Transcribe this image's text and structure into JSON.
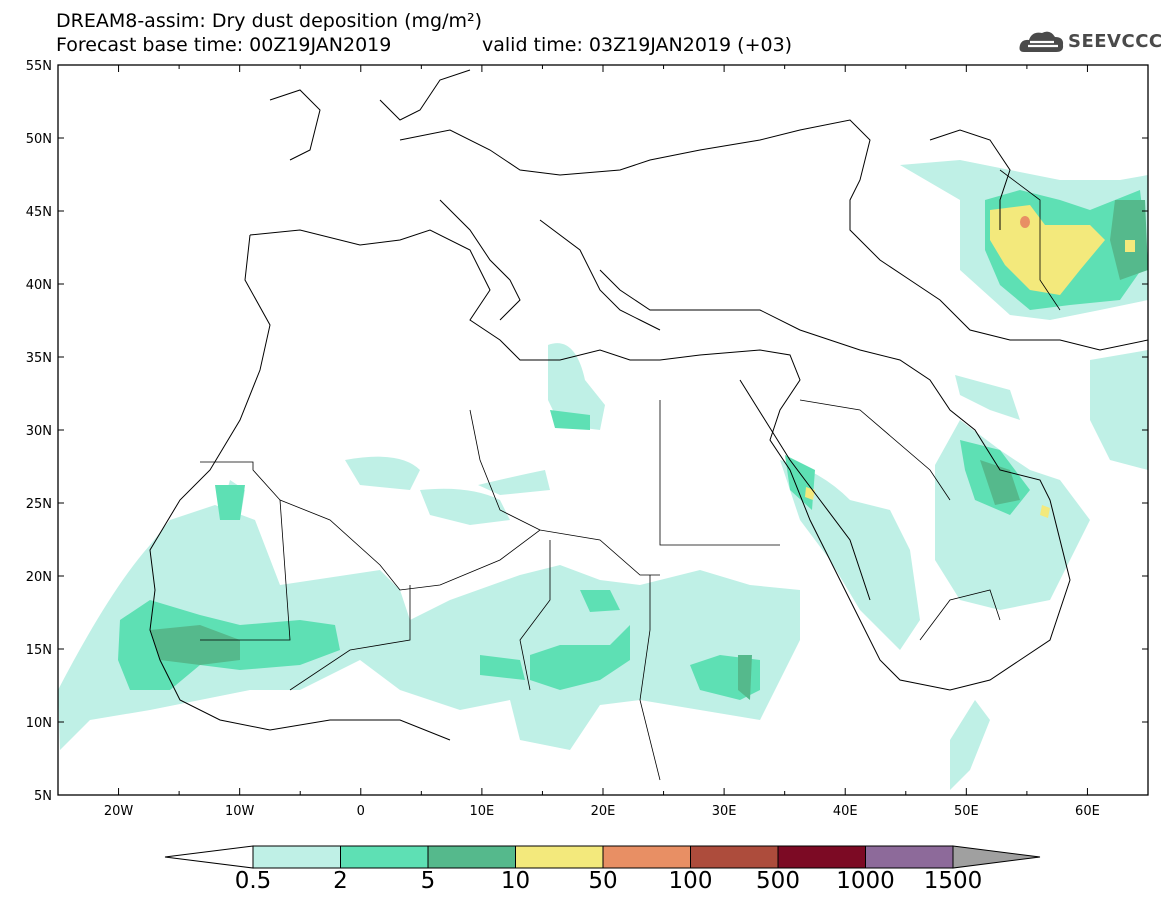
{
  "header": {
    "title_line": "DREAM8-assim: Dry dust deposition (mg/m²)",
    "base_time": "Forecast base time: 00Z19JAN2019",
    "valid_time": "valid time: 03Z19JAN2019 (+03)"
  },
  "logo": {
    "text": "SEEVCCC",
    "icon": "cloud-icon"
  },
  "map": {
    "lat_labels": [
      "55N",
      "50N",
      "45N",
      "40N",
      "35N",
      "30N",
      "25N",
      "20N",
      "15N",
      "10N",
      "5N"
    ],
    "lon_labels": [
      "20W",
      "10W",
      "0",
      "10E",
      "20E",
      "30E",
      "40E",
      "50E",
      "60E"
    ],
    "lat_range": [
      5,
      55
    ],
    "lon_range": [
      -25,
      65
    ]
  },
  "colorbar": {
    "levels": [
      "0.5",
      "2",
      "5",
      "10",
      "50",
      "100",
      "500",
      "1000",
      "1500"
    ],
    "colors": [
      "#ffffff",
      "#bff0e6",
      "#5ee0b4",
      "#55b98c",
      "#f3e97c",
      "#e88f64",
      "#ad4c3c",
      "#7c0a24",
      "#8d6a9a",
      "#a0a0a0"
    ]
  }
}
